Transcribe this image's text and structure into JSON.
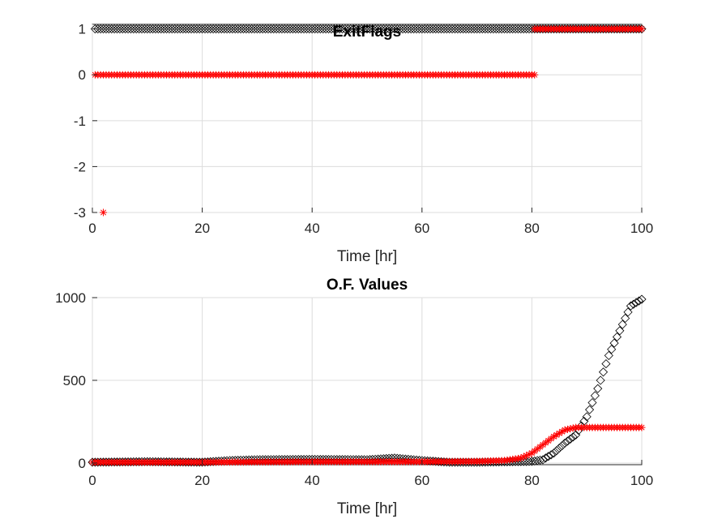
{
  "chart_data": [
    {
      "type": "scatter",
      "title": "ExitFlags",
      "xlabel": "Time [hr]",
      "ylabel": "",
      "xlim": [
        0,
        100
      ],
      "ylim": [
        -3,
        1.1
      ],
      "xticks": [
        0,
        20,
        40,
        60,
        80,
        100
      ],
      "xtick_labels": [
        "0",
        "20",
        "40",
        "60",
        "80",
        "100"
      ],
      "yticks": [
        -3,
        -2,
        -1,
        0,
        1
      ],
      "ytick_labels": [
        "-3",
        "-2",
        "-1",
        "0",
        "1"
      ],
      "grid": true,
      "series": [
        {
          "marker": "diamond",
          "color": "#000000",
          "segments": [
            {
              "x_start": 0.5,
              "x_end": 100,
              "step": 0.5,
              "y": 1
            }
          ],
          "points": []
        },
        {
          "marker": "asterisk",
          "color": "#ff0000",
          "segments": [
            {
              "x_start": 0.5,
              "x_end": 80.5,
              "step": 0.5,
              "y": 0
            },
            {
              "x_start": 80.5,
              "x_end": 100,
              "step": 0.5,
              "y": 1
            }
          ],
          "points": [
            {
              "x": 2,
              "y": -3
            }
          ]
        }
      ]
    },
    {
      "type": "scatter",
      "title": "O.F. Values",
      "xlabel": "Time [hr]",
      "ylabel": "",
      "xlim": [
        0,
        100
      ],
      "ylim": [
        -10,
        1000
      ],
      "xticks": [
        0,
        20,
        40,
        60,
        80,
        100
      ],
      "xtick_labels": [
        "0",
        "20",
        "40",
        "60",
        "80",
        "100"
      ],
      "yticks": [
        0,
        500,
        1000
      ],
      "ytick_labels": [
        "0",
        "500",
        "1000"
      ],
      "grid": true,
      "series": [
        {
          "marker": "diamond",
          "color": "#000000",
          "step": 0.5,
          "x": [
            0,
            10,
            20,
            25,
            30,
            40,
            50,
            55,
            60,
            65,
            70,
            80,
            82,
            84,
            86,
            88,
            90,
            92,
            94,
            96,
            98,
            100
          ],
          "y": [
            5,
            8,
            5,
            15,
            20,
            22,
            20,
            30,
            15,
            5,
            5,
            10,
            20,
            60,
            120,
            170,
            280,
            450,
            650,
            800,
            950,
            990
          ]
        },
        {
          "marker": "asterisk",
          "color": "#ff0000",
          "step": 0.5,
          "x": [
            0,
            20,
            40,
            60,
            70,
            75,
            78,
            80,
            82,
            84,
            86,
            88,
            90,
            95,
            100
          ],
          "y": [
            5,
            5,
            8,
            8,
            10,
            15,
            30,
            60,
            110,
            160,
            200,
            215,
            215,
            215,
            215
          ]
        }
      ]
    }
  ]
}
